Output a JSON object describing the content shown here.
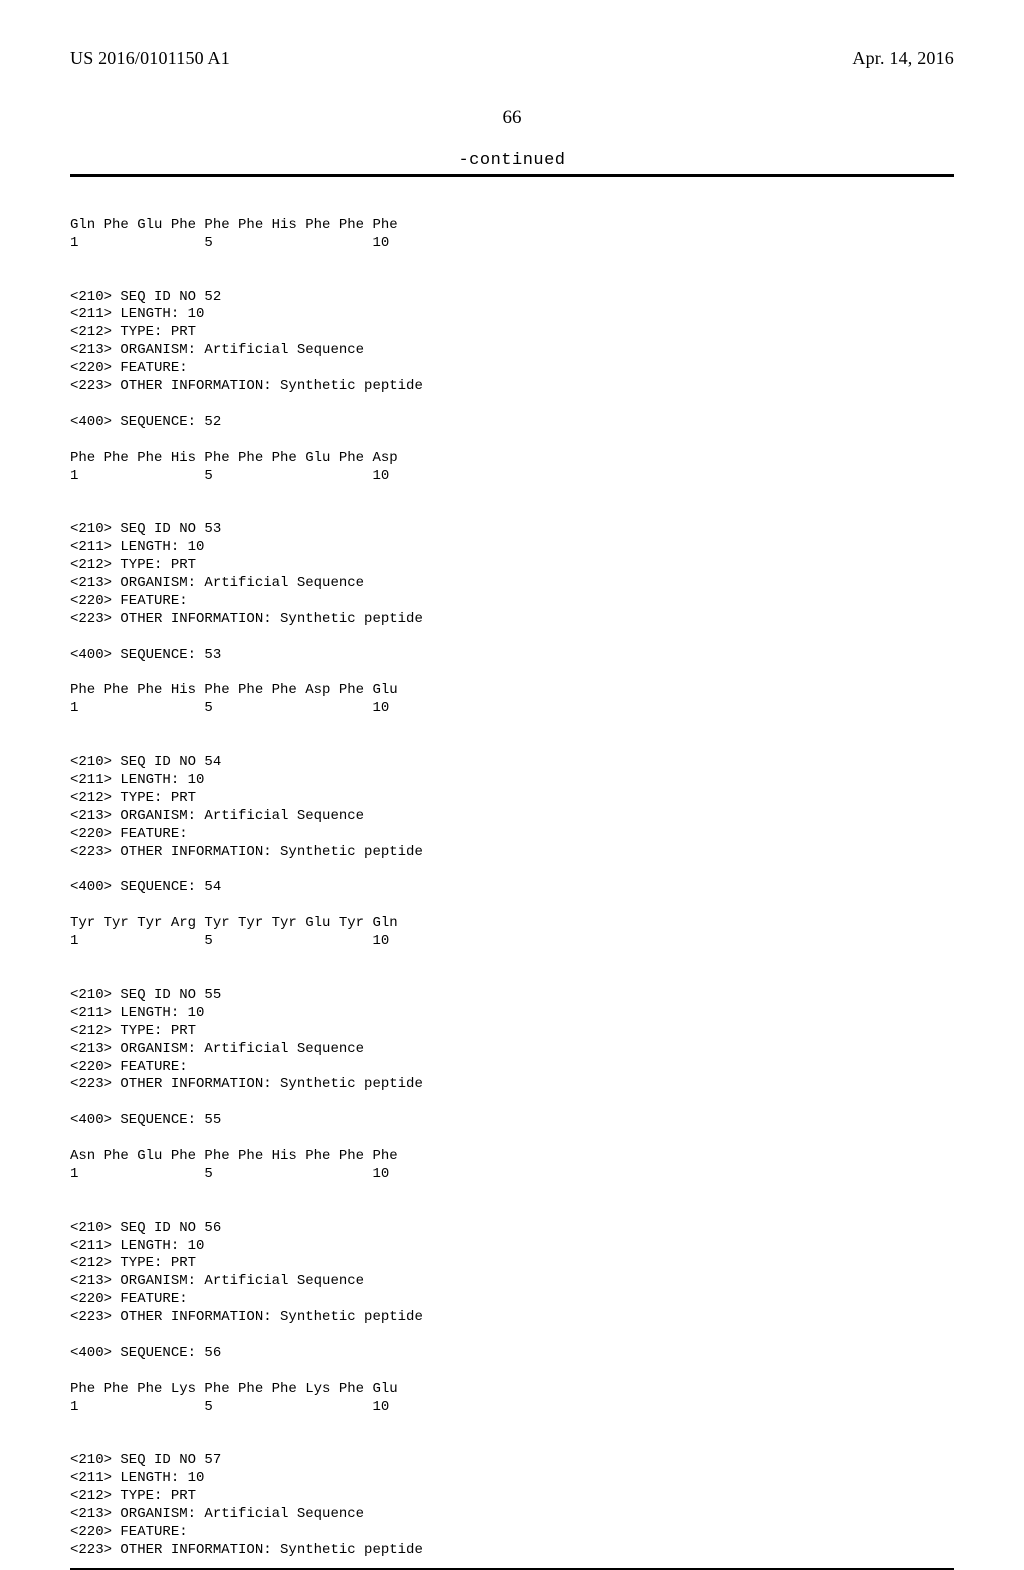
{
  "header": {
    "pub_no": "US 2016/0101150 A1",
    "pub_date": "Apr. 14, 2016"
  },
  "page_number": "66",
  "continued_label": "-continued",
  "sequences": [
    {
      "peptide_line": "Gln Phe Glu Phe Phe Phe His Phe Phe Phe",
      "index_line": "1               5                   10"
    },
    {
      "header_lines": [
        "<210> SEQ ID NO 52",
        "<211> LENGTH: 10",
        "<212> TYPE: PRT",
        "<213> ORGANISM: Artificial Sequence",
        "<220> FEATURE:",
        "<223> OTHER INFORMATION: Synthetic peptide"
      ],
      "seq_line": "<400> SEQUENCE: 52",
      "peptide_line": "Phe Phe Phe His Phe Phe Phe Glu Phe Asp",
      "index_line": "1               5                   10"
    },
    {
      "header_lines": [
        "<210> SEQ ID NO 53",
        "<211> LENGTH: 10",
        "<212> TYPE: PRT",
        "<213> ORGANISM: Artificial Sequence",
        "<220> FEATURE:",
        "<223> OTHER INFORMATION: Synthetic peptide"
      ],
      "seq_line": "<400> SEQUENCE: 53",
      "peptide_line": "Phe Phe Phe His Phe Phe Phe Asp Phe Glu",
      "index_line": "1               5                   10"
    },
    {
      "header_lines": [
        "<210> SEQ ID NO 54",
        "<211> LENGTH: 10",
        "<212> TYPE: PRT",
        "<213> ORGANISM: Artificial Sequence",
        "<220> FEATURE:",
        "<223> OTHER INFORMATION: Synthetic peptide"
      ],
      "seq_line": "<400> SEQUENCE: 54",
      "peptide_line": "Tyr Tyr Tyr Arg Tyr Tyr Tyr Glu Tyr Gln",
      "index_line": "1               5                   10"
    },
    {
      "header_lines": [
        "<210> SEQ ID NO 55",
        "<211> LENGTH: 10",
        "<212> TYPE: PRT",
        "<213> ORGANISM: Artificial Sequence",
        "<220> FEATURE:",
        "<223> OTHER INFORMATION: Synthetic peptide"
      ],
      "seq_line": "<400> SEQUENCE: 55",
      "peptide_line": "Asn Phe Glu Phe Phe Phe His Phe Phe Phe",
      "index_line": "1               5                   10"
    },
    {
      "header_lines": [
        "<210> SEQ ID NO 56",
        "<211> LENGTH: 10",
        "<212> TYPE: PRT",
        "<213> ORGANISM: Artificial Sequence",
        "<220> FEATURE:",
        "<223> OTHER INFORMATION: Synthetic peptide"
      ],
      "seq_line": "<400> SEQUENCE: 56",
      "peptide_line": "Phe Phe Phe Lys Phe Phe Phe Lys Phe Glu",
      "index_line": "1               5                   10"
    },
    {
      "header_lines": [
        "<210> SEQ ID NO 57",
        "<211> LENGTH: 10",
        "<212> TYPE: PRT",
        "<213> ORGANISM: Artificial Sequence",
        "<220> FEATURE:",
        "<223> OTHER INFORMATION: Synthetic peptide"
      ]
    }
  ]
}
